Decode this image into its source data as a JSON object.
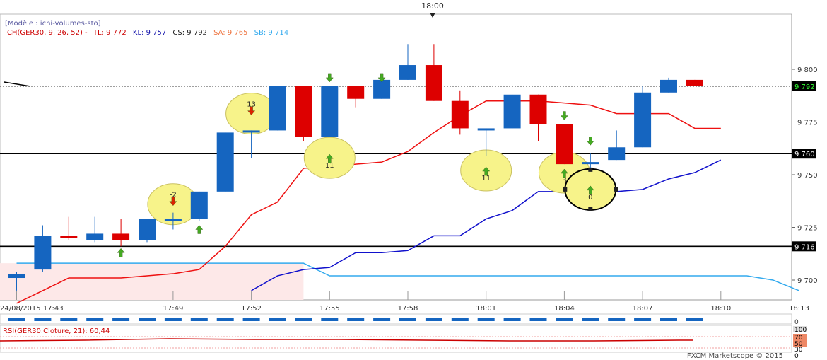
{
  "header": {
    "model": "[Modèle : ichi-volumes-sto]",
    "ich_label": "ICH(GER30, 9, 26, 52) -",
    "tl_label": "TL: 9 772",
    "kl_label": "KL: 9 757",
    "cs_label": "CS: 9 792",
    "sa_label": "SA: 9 765",
    "sb_label": "SB: 9 714",
    "top_time": "18:00"
  },
  "rsi": {
    "label": "RSI(GER30.Cloture, 21): 60,44",
    "ticks": [
      "100",
      "70",
      "50",
      "30",
      "0"
    ]
  },
  "volume": {
    "tick": "0"
  },
  "footer": {
    "credit": "FXCM Marketscope © 2015"
  },
  "colors": {
    "bull": "#1565c0",
    "bear": "#dd0000",
    "tenkan": "#ee1111",
    "kijun": "#1111cc",
    "senkou_b": "#33aaee",
    "cloud": "#fde8e8",
    "highlight": "#f7f38a",
    "arrow_up": "#44aa22",
    "arrow_down": "#dd2200"
  },
  "chart_data": {
    "type": "candlestick",
    "instrument": "GER30",
    "x_ticks": [
      "24/08/2015 17:43",
      "17:49",
      "17:52",
      "17:55",
      "17:58",
      "18:01",
      "18:04",
      "18:07",
      "18:10",
      "18:13"
    ],
    "x_tick_minutes": [
      0,
      6,
      9,
      12,
      15,
      18,
      21,
      24,
      27,
      30
    ],
    "y_ticks": [
      9700,
      9725,
      9750,
      9775,
      9800
    ],
    "y_tick_labels": [
      "9 700",
      "9 725",
      "9 750",
      "9 775",
      "9 800"
    ],
    "ylim": [
      9697,
      9812
    ],
    "price_markers": [
      {
        "value": 9792,
        "label": "9 792",
        "style": "dotted",
        "bg": "#000000",
        "fg": "#33ff33"
      },
      {
        "value": 9760,
        "label": "9 760",
        "style": "solid",
        "bg": "#000000",
        "fg": "#ffffff"
      },
      {
        "value": 9716,
        "label": "9 716",
        "style": "solid",
        "bg": "#000000",
        "fg": "#ffffff"
      }
    ],
    "candles": [
      {
        "time": "17:43",
        "open": 9701,
        "high": 9704,
        "low": 9695,
        "close": 9703
      },
      {
        "time": "17:44",
        "open": 9705,
        "high": 9726,
        "low": 9704,
        "close": 9721
      },
      {
        "time": "17:45",
        "open": 9721,
        "high": 9730,
        "low": 9719,
        "close": 9720
      },
      {
        "time": "17:46",
        "open": 9719,
        "high": 9730,
        "low": 9718,
        "close": 9722
      },
      {
        "time": "17:47",
        "open": 9722,
        "high": 9729,
        "low": 9716,
        "close": 9719
      },
      {
        "time": "17:48",
        "open": 9719,
        "high": 9729,
        "low": 9718,
        "close": 9729
      },
      {
        "time": "17:49",
        "open": 9728,
        "high": 9732,
        "low": 9724,
        "close": 9729
      },
      {
        "time": "17:50",
        "open": 9729,
        "high": 9742,
        "low": 9728,
        "close": 9742
      },
      {
        "time": "17:51",
        "open": 9742,
        "high": 9770,
        "low": 9742,
        "close": 9770
      },
      {
        "time": "17:52",
        "open": 9770,
        "high": 9771,
        "low": 9758,
        "close": 9771
      },
      {
        "time": "17:53",
        "open": 9771,
        "high": 9792,
        "low": 9771,
        "close": 9792
      },
      {
        "time": "17:54",
        "open": 9792,
        "high": 9792,
        "low": 9766,
        "close": 9768
      },
      {
        "time": "17:55",
        "open": 9768,
        "high": 9792,
        "low": 9768,
        "close": 9792
      },
      {
        "time": "17:56",
        "open": 9792,
        "high": 9792,
        "low": 9782,
        "close": 9786
      },
      {
        "time": "17:57",
        "open": 9786,
        "high": 9798,
        "low": 9786,
        "close": 9795
      },
      {
        "time": "17:58",
        "open": 9795,
        "high": 9812,
        "low": 9795,
        "close": 9802
      },
      {
        "time": "17:59",
        "open": 9802,
        "high": 9812,
        "low": 9785,
        "close": 9785
      },
      {
        "time": "18:00",
        "open": 9785,
        "high": 9790,
        "low": 9769,
        "close": 9772
      },
      {
        "time": "18:01",
        "open": 9772,
        "high": 9772,
        "low": 9759,
        "close": 9772
      },
      {
        "time": "18:02",
        "open": 9772,
        "high": 9788,
        "low": 9772,
        "close": 9788
      },
      {
        "time": "18:03",
        "open": 9788,
        "high": 9788,
        "low": 9766,
        "close": 9774
      },
      {
        "time": "18:04",
        "open": 9774,
        "high": 9774,
        "low": 9755,
        "close": 9755
      },
      {
        "time": "18:05",
        "open": 9755,
        "high": 9760,
        "low": 9753,
        "close": 9756
      },
      {
        "time": "18:06",
        "open": 9757,
        "high": 9771,
        "low": 9757,
        "close": 9763
      },
      {
        "time": "18:07",
        "open": 9763,
        "high": 9792,
        "low": 9763,
        "close": 9789
      },
      {
        "time": "18:08",
        "open": 9789,
        "high": 9796,
        "low": 9789,
        "close": 9795
      },
      {
        "time": "18:09",
        "open": 9795,
        "high": 9795,
        "low": 9792,
        "close": 9792
      }
    ],
    "tenkan": [
      [
        0,
        9689
      ],
      [
        1,
        9695
      ],
      [
        2,
        9701
      ],
      [
        3,
        9701
      ],
      [
        4,
        9701
      ],
      [
        5,
        9702
      ],
      [
        6,
        9703
      ],
      [
        7,
        9705
      ],
      [
        8,
        9716
      ],
      [
        9,
        9731
      ],
      [
        10,
        9737
      ],
      [
        11,
        9753
      ],
      [
        12,
        9754
      ],
      [
        13,
        9755
      ],
      [
        14,
        9756
      ],
      [
        15,
        9761
      ],
      [
        16,
        9770
      ],
      [
        17,
        9778
      ],
      [
        18,
        9785
      ],
      [
        19,
        9785
      ],
      [
        20,
        9785
      ],
      [
        21,
        9784
      ],
      [
        22,
        9783
      ],
      [
        23,
        9779
      ],
      [
        24,
        9779
      ],
      [
        25,
        9779
      ],
      [
        26,
        9772
      ],
      [
        27,
        9772
      ]
    ],
    "kijun": [
      [
        9,
        9695
      ],
      [
        10,
        9702
      ],
      [
        11,
        9705
      ],
      [
        12,
        9706
      ],
      [
        13,
        9713
      ],
      [
        14,
        9713
      ],
      [
        15,
        9714
      ],
      [
        16,
        9721
      ],
      [
        17,
        9721
      ],
      [
        18,
        9729
      ],
      [
        19,
        9733
      ],
      [
        20,
        9742
      ],
      [
        21,
        9742
      ],
      [
        22,
        9742
      ],
      [
        23,
        9742
      ],
      [
        24,
        9743
      ],
      [
        25,
        9748
      ],
      [
        26,
        9751
      ],
      [
        27,
        9757
      ]
    ],
    "senkou_b": [
      [
        0,
        9708
      ],
      [
        1,
        9708
      ],
      [
        2,
        9708
      ],
      [
        3,
        9708
      ],
      [
        4,
        9708
      ],
      [
        5,
        9708
      ],
      [
        6,
        9708
      ],
      [
        7,
        9708
      ],
      [
        8,
        9708
      ],
      [
        9,
        9708
      ],
      [
        10,
        9708
      ],
      [
        11,
        9708
      ],
      [
        12,
        9702
      ],
      [
        13,
        9702
      ],
      [
        14,
        9702
      ],
      [
        15,
        9702
      ],
      [
        16,
        9702
      ],
      [
        17,
        9702
      ],
      [
        18,
        9702
      ],
      [
        19,
        9702
      ],
      [
        20,
        9702
      ],
      [
        21,
        9702
      ],
      [
        22,
        9702
      ],
      [
        23,
        9702
      ],
      [
        24,
        9702
      ],
      [
        25,
        9702
      ],
      [
        26,
        9702
      ],
      [
        27,
        9702
      ],
      [
        28,
        9702
      ],
      [
        29,
        9700
      ],
      [
        30,
        9695
      ]
    ],
    "chikou": [
      [
        -0.5,
        9794
      ],
      [
        0.5,
        9792
      ]
    ],
    "annotations": [
      {
        "label": "-2",
        "x": 6,
        "y": 9736,
        "arrow": "down"
      },
      {
        "label": "13",
        "x": 9,
        "y": 9779,
        "arrow": "down"
      },
      {
        "label": "11",
        "x": 12,
        "y": 9758,
        "arrow": "up"
      },
      {
        "label": "11",
        "x": 18,
        "y": 9752,
        "arrow": "up"
      },
      {
        "label": "3",
        "x": 21,
        "y": 9751,
        "arrow": "up"
      },
      {
        "label": "0",
        "x": 22,
        "y": 9743,
        "arrow": "up",
        "outlined": true
      }
    ],
    "small_arrows": [
      {
        "x": 4,
        "y": 9713,
        "dir": "up"
      },
      {
        "x": 7,
        "y": 9724,
        "dir": "up"
      },
      {
        "x": 12,
        "y": 9796,
        "dir": "down"
      },
      {
        "x": 14,
        "y": 9796,
        "dir": "down"
      },
      {
        "x": 21,
        "y": 9778,
        "dir": "down"
      },
      {
        "x": 22,
        "y": 9766,
        "dir": "down"
      }
    ]
  }
}
